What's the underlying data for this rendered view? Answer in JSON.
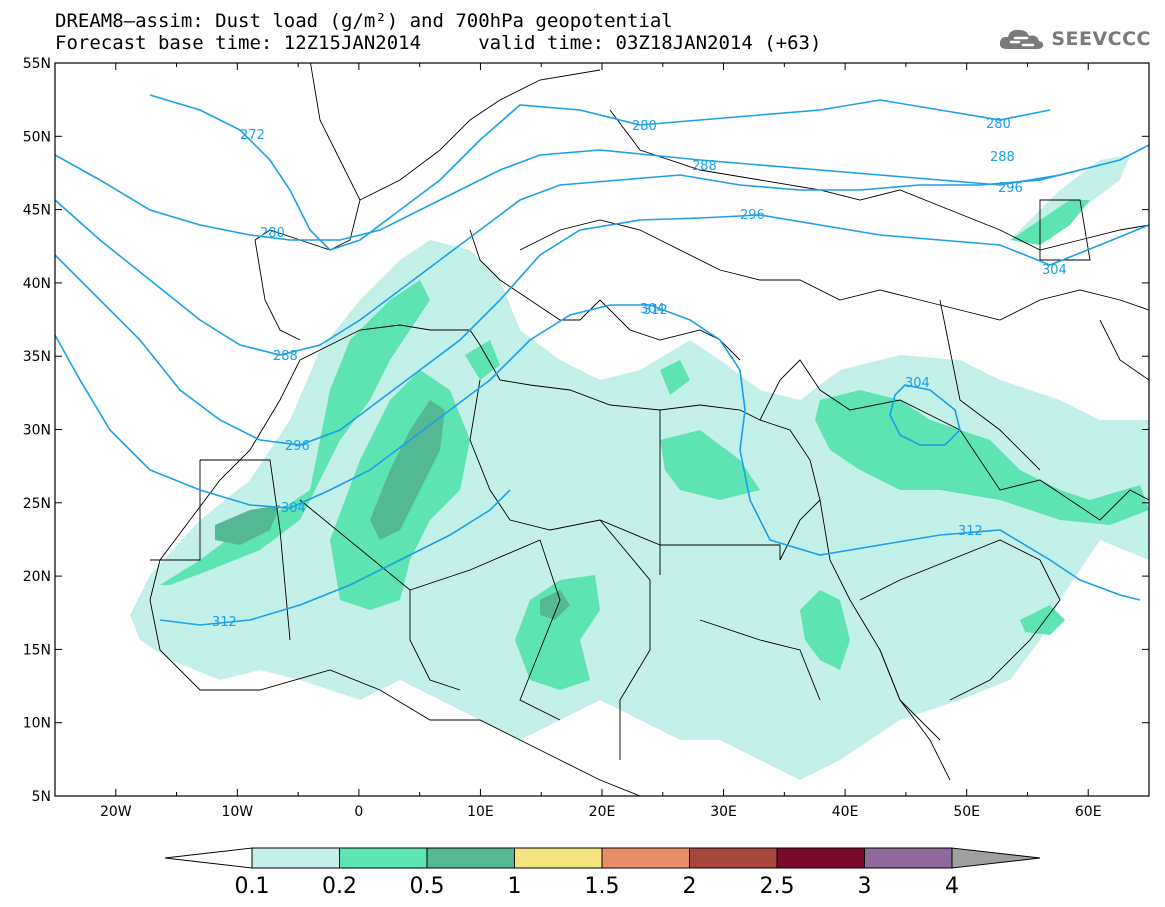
{
  "title": {
    "line1": "DREAM8–assim: Dust load (g/m²) and 700hPa geopotential",
    "line2": "Forecast base time: 12Z15JAN2014     valid time: 03Z18JAN2014 (+63)"
  },
  "brand": {
    "icon": "cloud-logo-icon",
    "text": "SEEVCCC"
  },
  "map": {
    "lon_labels": [
      "20W",
      "10W",
      "0",
      "10E",
      "20E",
      "30E",
      "40E",
      "50E",
      "60E"
    ],
    "lat_labels": [
      "55N",
      "50N",
      "45N",
      "40N",
      "35N",
      "30N",
      "25N",
      "20N",
      "15N",
      "10N",
      "5N"
    ]
  },
  "contour_labels": [
    "272",
    "280",
    "288",
    "296",
    "304",
    "312",
    "280",
    "288",
    "296",
    "304",
    "312",
    "304",
    "280",
    "288",
    "296",
    "304",
    "312"
  ],
  "colorbar": {
    "ticks": [
      "0.1",
      "0.2",
      "0.5",
      "1",
      "1.5",
      "2",
      "2.5",
      "3",
      "4"
    ],
    "colors": [
      "#c4f0ea",
      "#5ee3b3",
      "#54b894",
      "#f2e47e",
      "#e88d68",
      "#a8463c",
      "#7a0a2a",
      "#8e6a9e",
      "#a0a0a0"
    ],
    "under_color": "#ffffff"
  },
  "colors": {
    "contour": "#1aa0e8",
    "border": "#000000"
  }
}
